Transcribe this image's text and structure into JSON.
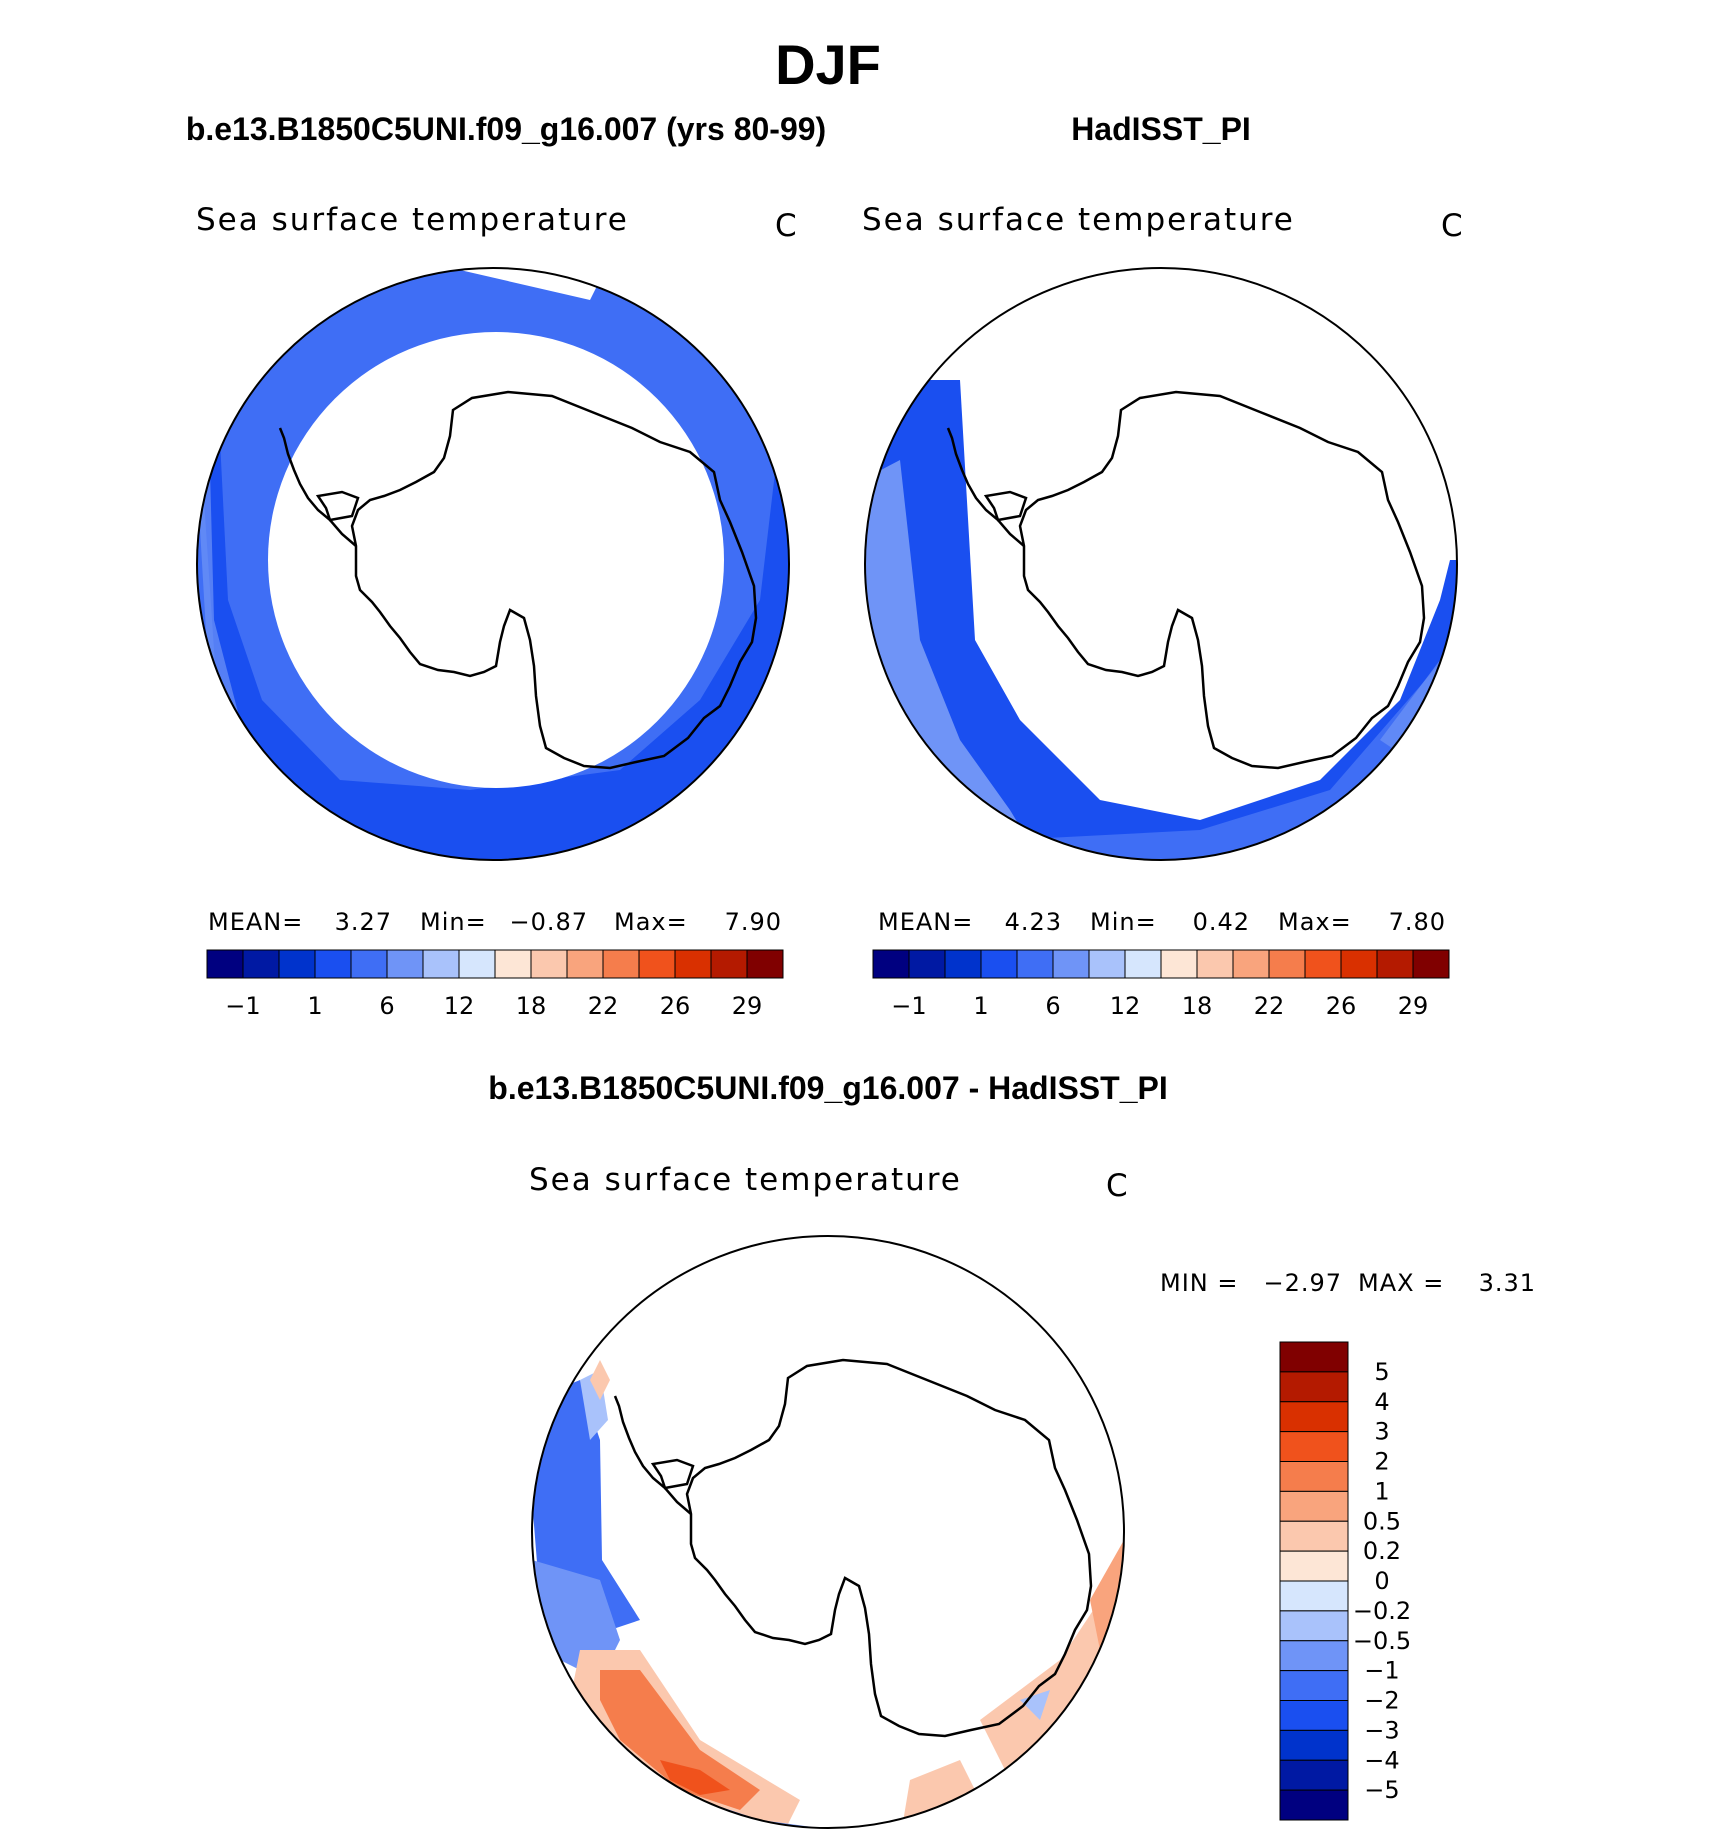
{
  "title": "DJF",
  "panels": [
    {
      "id": "model",
      "title": "b.e13.B1850C5UNI.f09_g16.007 (yrs 80-99)",
      "variable": "Sea surface temperature",
      "unit": "C",
      "stats": {
        "mean_label": "MEAN=",
        "mean": "3.27",
        "min_label": "Min=",
        "min": "−0.87",
        "max_label": "Max=",
        "max": "7.90"
      }
    },
    {
      "id": "obs",
      "title": "HadISST_PI",
      "variable": "Sea surface temperature",
      "unit": "C",
      "stats": {
        "mean_label": "MEAN=",
        "mean": "4.23",
        "min_label": "Min=",
        "min": "0.42",
        "max_label": "Max=",
        "max": "7.80"
      }
    },
    {
      "id": "diff",
      "title": "b.e13.B1850C5UNI.f09_g16.007 - HadISST_PI",
      "variable": "Sea surface temperature",
      "unit": "C",
      "stats": {
        "min_label": "MIN =",
        "min": "−2.97",
        "max_label": "MAX =",
        "max": "3.31"
      }
    }
  ],
  "colorbars": {
    "absolute": {
      "colors": [
        "#000080",
        "#0019a3",
        "#0033cc",
        "#1a4ff0",
        "#3f6ef5",
        "#6f94f7",
        "#a9c2fb",
        "#d6e6fd",
        "#fde6d6",
        "#fbc8ae",
        "#f9a47d",
        "#f57d4c",
        "#f0521c",
        "#d93000",
        "#b41a00",
        "#800000"
      ],
      "tick_labels": [
        "−1",
        "1",
        "6",
        "12",
        "18",
        "22",
        "26",
        "29"
      ]
    },
    "difference": {
      "colors": [
        "#800000",
        "#b41a00",
        "#d93000",
        "#f0521c",
        "#f57d4c",
        "#f9a47d",
        "#fbc8ae",
        "#fde6d6",
        "#d6e6fd",
        "#a9c2fb",
        "#6f94f7",
        "#3f6ef5",
        "#1a4ff0",
        "#0033cc",
        "#0019a3",
        "#000080"
      ],
      "tick_labels": [
        "5",
        "4",
        "3",
        "2",
        "1",
        "0.5",
        "0.2",
        "0",
        "−0.2",
        "−0.5",
        "−1",
        "−2",
        "−3",
        "−4",
        "−5"
      ]
    }
  }
}
